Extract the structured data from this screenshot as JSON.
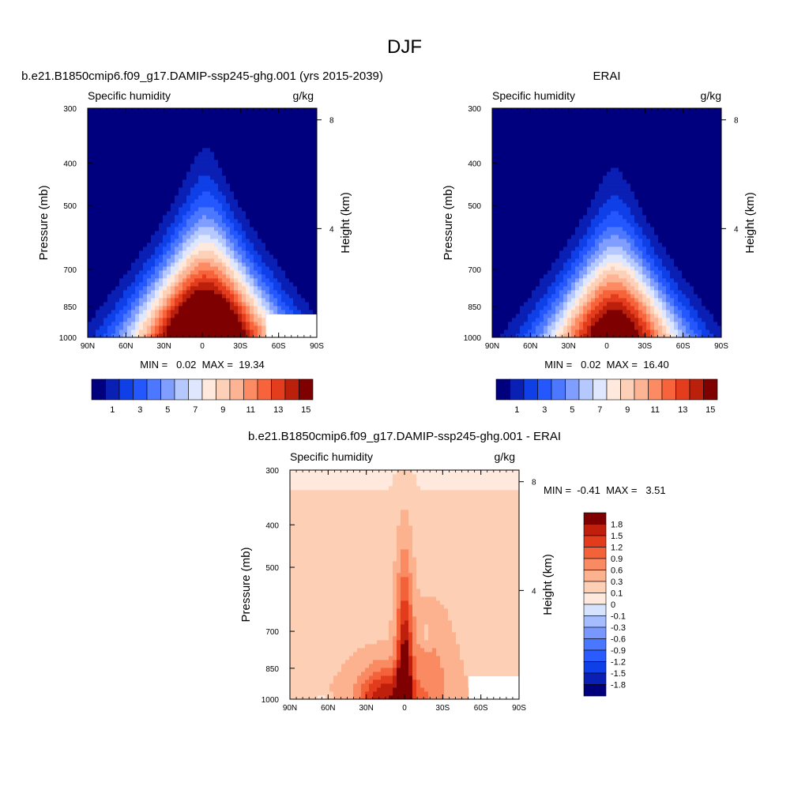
{
  "figure_title": "DJF",
  "colors": {
    "pos_scale": [
      "#00007f",
      "#0a1fb4",
      "#0f3fe6",
      "#2557ff",
      "#4b78ff",
      "#7f9eff",
      "#b5c9ff",
      "#dfe7ff",
      "#ffe8dc",
      "#fdd0b8",
      "#fdb495",
      "#fc8b63",
      "#f7633b",
      "#e43d1e",
      "#bb200c",
      "#7f0000"
    ],
    "diff_scale": [
      "#00007f",
      "#0a1fb4",
      "#0f3fe6",
      "#2a5bff",
      "#4a77ff",
      "#7898ff",
      "#a5bdff",
      "#d6e3ff",
      "#ffe8dc",
      "#fdcfb4",
      "#fcb18f",
      "#f98a61",
      "#f4623a",
      "#e33c1d",
      "#bf1f0c",
      "#7f0000"
    ]
  },
  "chart_data": [
    {
      "type": "heatmap",
      "title": "b.e21.B1850cmip6.f09_g17.DAMIP-ssp245-ghg.001 (yrs 2015-2039)",
      "left_label": "Specific humidity",
      "right_label": "g/kg",
      "ylabel": "Pressure (mb)",
      "ylabel_right": "Height (km)",
      "x_ticks": [
        "90N",
        "60N",
        "30N",
        "0",
        "30S",
        "60S",
        "90S"
      ],
      "y_ticks": [
        "300",
        "400",
        "500",
        "700",
        "850",
        "1000"
      ],
      "y_ticks_right": [
        "8",
        "4"
      ],
      "stats": "MIN =   0.02  MAX =  19.34",
      "colorbar_labels": [
        "1",
        "3",
        "5",
        "7",
        "9",
        "11",
        "13",
        "15"
      ],
      "peak_value": 19.34,
      "min_value": 0.02
    },
    {
      "type": "heatmap",
      "title": "ERAI",
      "left_label": "Specific humidity",
      "right_label": "g/kg",
      "ylabel": "Pressure (mb)",
      "ylabel_right": "Height (km)",
      "x_ticks": [
        "90N",
        "60N",
        "30N",
        "0",
        "30S",
        "60S",
        "90S"
      ],
      "y_ticks": [
        "300",
        "400",
        "500",
        "700",
        "850",
        "1000"
      ],
      "y_ticks_right": [
        "8",
        "4"
      ],
      "stats": "MIN =   0.02  MAX =  16.40",
      "colorbar_labels": [
        "1",
        "3",
        "5",
        "7",
        "9",
        "11",
        "13",
        "15"
      ],
      "peak_value": 16.4,
      "min_value": 0.02
    },
    {
      "type": "heatmap",
      "title": "b.e21.B1850cmip6.f09_g17.DAMIP-ssp245-ghg.001 - ERAI",
      "left_label": "Specific humidity",
      "right_label": "g/kg",
      "ylabel": "Pressure (mb)",
      "ylabel_right": "Height (km)",
      "x_ticks": [
        "90N",
        "60N",
        "30N",
        "0",
        "30S",
        "60S",
        "90S"
      ],
      "y_ticks": [
        "300",
        "400",
        "500",
        "700",
        "850",
        "1000"
      ],
      "y_ticks_right": [
        "8",
        "4"
      ],
      "stats": "MIN =  -0.41  MAX =   3.51",
      "colorbar_labels": [
        "1.8",
        "1.5",
        "1.2",
        "0.9",
        "0.6",
        "0.3",
        "0.1",
        "0",
        "-0.1",
        "-0.3",
        "-0.6",
        "-0.9",
        "-1.2",
        "-1.5",
        "-1.8"
      ],
      "peak_value": 3.51,
      "min_value": -0.41
    }
  ]
}
